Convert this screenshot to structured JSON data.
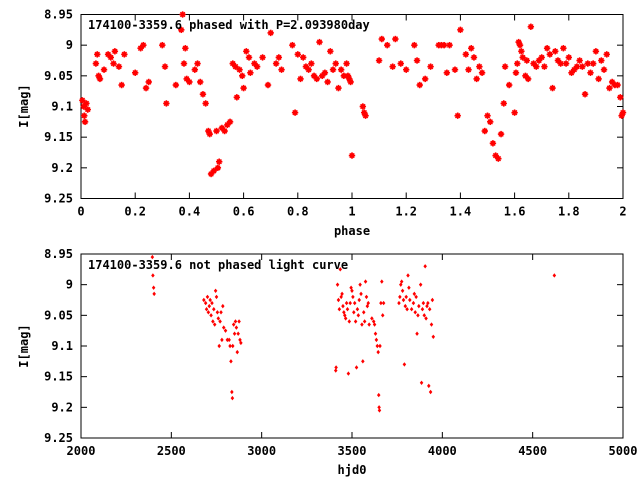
{
  "chart_data": [
    {
      "type": "scatter",
      "title": "174100-3359.6 phased with P=2.093980day",
      "xlabel": "phase",
      "ylabel": "I[mag]",
      "xlim": [
        0,
        2
      ],
      "ylim": [
        9.25,
        8.95
      ],
      "y_inverted": true,
      "xticks": [
        0,
        0.2,
        0.4,
        0.6,
        0.8,
        1,
        1.2,
        1.4,
        1.6,
        1.8,
        2
      ],
      "xtick_labels": [
        "0",
        "0.2",
        "0.4",
        "0.6",
        "0.8",
        "1",
        "1.2",
        "1.4",
        "1.6",
        "1.8",
        "2"
      ],
      "yticks": [
        8.95,
        9,
        9.05,
        9.1,
        9.15,
        9.2,
        9.25
      ],
      "ytick_labels": [
        "8.95",
        "9",
        "9.05",
        "9.1",
        "9.15",
        "9.2",
        "9.25"
      ],
      "marker_color": "#ff0000",
      "grid": false,
      "points": [
        [
          0.005,
          9.09
        ],
        [
          0.01,
          9.1
        ],
        [
          0.012,
          9.115
        ],
        [
          0.015,
          9.125
        ],
        [
          0.02,
          9.095
        ],
        [
          0.025,
          9.105
        ],
        [
          0.055,
          9.03
        ],
        [
          0.06,
          9.015
        ],
        [
          0.065,
          9.05
        ],
        [
          0.07,
          9.055
        ],
        [
          0.085,
          9.04
        ],
        [
          0.1,
          9.015
        ],
        [
          0.11,
          9.02
        ],
        [
          0.12,
          9.03
        ],
        [
          0.125,
          9.01
        ],
        [
          0.14,
          9.035
        ],
        [
          0.15,
          9.065
        ],
        [
          0.16,
          9.015
        ],
        [
          0.2,
          9.045
        ],
        [
          0.22,
          9.005
        ],
        [
          0.23,
          9.0
        ],
        [
          0.24,
          9.07
        ],
        [
          0.25,
          9.06
        ],
        [
          0.3,
          9.0
        ],
        [
          0.31,
          9.035
        ],
        [
          0.315,
          9.095
        ],
        [
          0.35,
          9.065
        ],
        [
          0.37,
          8.975
        ],
        [
          0.375,
          8.95
        ],
        [
          0.38,
          9.03
        ],
        [
          0.385,
          9.005
        ],
        [
          0.39,
          9.055
        ],
        [
          0.4,
          9.06
        ],
        [
          0.42,
          9.04
        ],
        [
          0.43,
          9.03
        ],
        [
          0.44,
          9.06
        ],
        [
          0.45,
          9.08
        ],
        [
          0.46,
          9.095
        ],
        [
          0.47,
          9.14
        ],
        [
          0.475,
          9.145
        ],
        [
          0.48,
          9.21
        ],
        [
          0.49,
          9.205
        ],
        [
          0.5,
          9.14
        ],
        [
          0.505,
          9.2
        ],
        [
          0.51,
          9.19
        ],
        [
          0.52,
          9.135
        ],
        [
          0.53,
          9.14
        ],
        [
          0.54,
          9.13
        ],
        [
          0.55,
          9.125
        ],
        [
          0.56,
          9.03
        ],
        [
          0.57,
          9.035
        ],
        [
          0.575,
          9.085
        ],
        [
          0.585,
          9.04
        ],
        [
          0.595,
          9.05
        ],
        [
          0.6,
          9.07
        ],
        [
          0.61,
          9.01
        ],
        [
          0.62,
          9.02
        ],
        [
          0.625,
          9.045
        ],
        [
          0.64,
          9.03
        ],
        [
          0.65,
          9.035
        ],
        [
          0.67,
          9.02
        ],
        [
          0.69,
          9.065
        ],
        [
          0.7,
          8.98
        ],
        [
          0.72,
          9.03
        ],
        [
          0.73,
          9.02
        ],
        [
          0.74,
          9.04
        ],
        [
          0.78,
          9.0
        ],
        [
          0.79,
          9.11
        ],
        [
          0.8,
          9.015
        ],
        [
          0.81,
          9.055
        ],
        [
          0.82,
          9.02
        ],
        [
          0.83,
          9.035
        ],
        [
          0.84,
          9.04
        ],
        [
          0.85,
          9.03
        ],
        [
          0.86,
          9.05
        ],
        [
          0.87,
          9.055
        ],
        [
          0.88,
          8.995
        ],
        [
          0.89,
          9.05
        ],
        [
          0.9,
          9.045
        ],
        [
          0.91,
          9.06
        ],
        [
          0.92,
          9.01
        ],
        [
          0.93,
          9.04
        ],
        [
          0.94,
          9.03
        ],
        [
          0.95,
          9.07
        ],
        [
          0.96,
          9.04
        ],
        [
          0.97,
          9.05
        ],
        [
          0.98,
          9.03
        ],
        [
          0.985,
          9.05
        ],
        [
          0.99,
          9.055
        ],
        [
          0.995,
          9.06
        ],
        [
          1.0,
          9.18
        ],
        [
          1.04,
          9.1
        ],
        [
          1.045,
          9.11
        ],
        [
          1.05,
          9.115
        ],
        [
          1.1,
          9.025
        ],
        [
          1.11,
          8.99
        ],
        [
          1.13,
          9.0
        ],
        [
          1.15,
          9.035
        ],
        [
          1.16,
          8.99
        ],
        [
          1.18,
          9.03
        ],
        [
          1.2,
          9.04
        ],
        [
          1.23,
          9.0
        ],
        [
          1.24,
          9.025
        ],
        [
          1.25,
          9.065
        ],
        [
          1.27,
          9.055
        ],
        [
          1.29,
          9.035
        ],
        [
          1.32,
          9.0
        ],
        [
          1.33,
          9.0
        ],
        [
          1.34,
          9.0
        ],
        [
          1.35,
          9.045
        ],
        [
          1.36,
          9.0
        ],
        [
          1.38,
          9.04
        ],
        [
          1.39,
          9.115
        ],
        [
          1.4,
          8.975
        ],
        [
          1.42,
          9.015
        ],
        [
          1.43,
          9.04
        ],
        [
          1.44,
          9.005
        ],
        [
          1.45,
          9.02
        ],
        [
          1.46,
          9.055
        ],
        [
          1.47,
          9.035
        ],
        [
          1.48,
          9.045
        ],
        [
          1.49,
          9.14
        ],
        [
          1.5,
          9.115
        ],
        [
          1.51,
          9.125
        ],
        [
          1.52,
          9.16
        ],
        [
          1.53,
          9.18
        ],
        [
          1.54,
          9.185
        ],
        [
          1.55,
          9.145
        ],
        [
          1.56,
          9.095
        ],
        [
          1.565,
          9.035
        ],
        [
          1.58,
          9.065
        ],
        [
          1.6,
          9.11
        ],
        [
          1.605,
          9.045
        ],
        [
          1.61,
          9.03
        ],
        [
          1.615,
          8.995
        ],
        [
          1.62,
          9.0
        ],
        [
          1.625,
          9.01
        ],
        [
          1.63,
          9.02
        ],
        [
          1.64,
          9.05
        ],
        [
          1.645,
          9.025
        ],
        [
          1.65,
          9.055
        ],
        [
          1.66,
          8.97
        ],
        [
          1.67,
          9.03
        ],
        [
          1.68,
          9.035
        ],
        [
          1.69,
          9.025
        ],
        [
          1.7,
          9.02
        ],
        [
          1.71,
          9.035
        ],
        [
          1.72,
          9.005
        ],
        [
          1.73,
          9.015
        ],
        [
          1.74,
          9.07
        ],
        [
          1.75,
          9.01
        ],
        [
          1.76,
          9.025
        ],
        [
          1.77,
          9.03
        ],
        [
          1.78,
          9.005
        ],
        [
          1.79,
          9.03
        ],
        [
          1.8,
          9.02
        ],
        [
          1.81,
          9.045
        ],
        [
          1.82,
          9.04
        ],
        [
          1.83,
          9.035
        ],
        [
          1.84,
          9.025
        ],
        [
          1.85,
          9.035
        ],
        [
          1.86,
          9.08
        ],
        [
          1.87,
          9.03
        ],
        [
          1.88,
          9.045
        ],
        [
          1.89,
          9.03
        ],
        [
          1.9,
          9.01
        ],
        [
          1.91,
          9.055
        ],
        [
          1.92,
          9.025
        ],
        [
          1.93,
          9.04
        ],
        [
          1.94,
          9.015
        ],
        [
          1.95,
          9.07
        ],
        [
          1.96,
          9.06
        ],
        [
          1.97,
          9.065
        ],
        [
          1.98,
          9.065
        ],
        [
          1.99,
          9.085
        ],
        [
          1.995,
          9.115
        ],
        [
          2.0,
          9.11
        ]
      ]
    },
    {
      "type": "scatter",
      "title": "174100-3359.6 not phased light curve",
      "xlabel": "hjd0",
      "ylabel": "I[mag]",
      "xlim": [
        2000,
        5000
      ],
      "ylim": [
        9.25,
        8.95
      ],
      "y_inverted": true,
      "xticks": [
        2000,
        2500,
        3000,
        3500,
        4000,
        4500,
        5000
      ],
      "xtick_labels": [
        "2000",
        "2500",
        "3000",
        "3500",
        "4000",
        "4500",
        "5000"
      ],
      "yticks": [
        8.95,
        9,
        9.05,
        9.1,
        9.15,
        9.2,
        9.25
      ],
      "ytick_labels": [
        "8.95",
        "9",
        "9.05",
        "9.1",
        "9.15",
        "9.2",
        "9.25"
      ],
      "marker_color": "#ff0000",
      "grid": false,
      "points": [
        [
          2395,
          8.955
        ],
        [
          2398,
          8.985
        ],
        [
          2402,
          9.005
        ],
        [
          2405,
          9.015
        ],
        [
          2680,
          9.025
        ],
        [
          2690,
          9.03
        ],
        [
          2695,
          9.04
        ],
        [
          2700,
          9.02
        ],
        [
          2705,
          9.045
        ],
        [
          2710,
          9.035
        ],
        [
          2715,
          9.025
        ],
        [
          2720,
          9.05
        ],
        [
          2725,
          9.03
        ],
        [
          2730,
          9.06
        ],
        [
          2735,
          9.04
        ],
        [
          2740,
          9.065
        ],
        [
          2745,
          9.01
        ],
        [
          2750,
          9.02
        ],
        [
          2755,
          9.045
        ],
        [
          2760,
          9.055
        ],
        [
          2765,
          9.1
        ],
        [
          2770,
          9.06
        ],
        [
          2775,
          9.045
        ],
        [
          2780,
          9.09
        ],
        [
          2785,
          9.035
        ],
        [
          2790,
          9.07
        ],
        [
          2800,
          9.075
        ],
        [
          2810,
          9.09
        ],
        [
          2820,
          9.09
        ],
        [
          2825,
          9.1
        ],
        [
          2830,
          9.125
        ],
        [
          2835,
          9.175
        ],
        [
          2838,
          9.185
        ],
        [
          2840,
          9.1
        ],
        [
          2845,
          9.065
        ],
        [
          2850,
          9.08
        ],
        [
          2855,
          9.06
        ],
        [
          2860,
          9.07
        ],
        [
          2865,
          9.11
        ],
        [
          2870,
          9.08
        ],
        [
          2875,
          9.06
        ],
        [
          2880,
          9.09
        ],
        [
          2885,
          9.095
        ],
        [
          3410,
          9.14
        ],
        [
          3412,
          9.135
        ],
        [
          3420,
          9.0
        ],
        [
          3425,
          9.025
        ],
        [
          3430,
          9.04
        ],
        [
          3435,
          8.975
        ],
        [
          3440,
          9.02
        ],
        [
          3445,
          9.015
        ],
        [
          3450,
          9.035
        ],
        [
          3455,
          9.045
        ],
        [
          3460,
          9.05
        ],
        [
          3465,
          9.055
        ],
        [
          3470,
          9.03
        ],
        [
          3475,
          9.04
        ],
        [
          3480,
          9.145
        ],
        [
          3485,
          9.06
        ],
        [
          3490,
          9.03
        ],
        [
          3495,
          9.005
        ],
        [
          3500,
          9.01
        ],
        [
          3505,
          9.02
        ],
        [
          3510,
          9.045
        ],
        [
          3515,
          9.03
        ],
        [
          3520,
          9.06
        ],
        [
          3525,
          9.135
        ],
        [
          3530,
          9.04
        ],
        [
          3535,
          9.05
        ],
        [
          3540,
          9.025
        ],
        [
          3545,
          9.0
        ],
        [
          3550,
          9.015
        ],
        [
          3555,
          9.065
        ],
        [
          3560,
          9.125
        ],
        [
          3565,
          9.045
        ],
        [
          3570,
          9.06
        ],
        [
          3575,
          8.995
        ],
        [
          3580,
          9.02
        ],
        [
          3585,
          9.035
        ],
        [
          3590,
          9.03
        ],
        [
          3595,
          9.065
        ],
        [
          3610,
          9.055
        ],
        [
          3620,
          9.06
        ],
        [
          3625,
          9.065
        ],
        [
          3630,
          9.08
        ],
        [
          3635,
          9.09
        ],
        [
          3640,
          9.1
        ],
        [
          3645,
          9.11
        ],
        [
          3648,
          9.18
        ],
        [
          3650,
          9.2
        ],
        [
          3652,
          9.205
        ],
        [
          3655,
          9.1
        ],
        [
          3660,
          9.03
        ],
        [
          3665,
          8.995
        ],
        [
          3670,
          9.05
        ],
        [
          3675,
          9.03
        ],
        [
          3760,
          9.03
        ],
        [
          3765,
          9.02
        ],
        [
          3770,
          9.0
        ],
        [
          3775,
          8.995
        ],
        [
          3780,
          9.01
        ],
        [
          3785,
          9.025
        ],
        [
          3790,
          9.13
        ],
        [
          3795,
          9.035
        ],
        [
          3800,
          9.02
        ],
        [
          3805,
          9.04
        ],
        [
          3810,
          8.985
        ],
        [
          3815,
          9.005
        ],
        [
          3820,
          9.025
        ],
        [
          3830,
          9.04
        ],
        [
          3840,
          9.03
        ],
        [
          3845,
          9.015
        ],
        [
          3850,
          9.045
        ],
        [
          3855,
          9.02
        ],
        [
          3860,
          9.08
        ],
        [
          3865,
          9.05
        ],
        [
          3870,
          9.035
        ],
        [
          3880,
          9.0
        ],
        [
          3885,
          9.16
        ],
        [
          3890,
          9.04
        ],
        [
          3895,
          9.03
        ],
        [
          3900,
          9.05
        ],
        [
          3905,
          8.97
        ],
        [
          3910,
          9.055
        ],
        [
          3915,
          9.035
        ],
        [
          3920,
          9.03
        ],
        [
          3925,
          9.165
        ],
        [
          3930,
          9.04
        ],
        [
          3935,
          9.175
        ],
        [
          3940,
          9.065
        ],
        [
          3945,
          9.025
        ],
        [
          3950,
          9.085
        ],
        [
          4620,
          8.985
        ]
      ]
    }
  ]
}
